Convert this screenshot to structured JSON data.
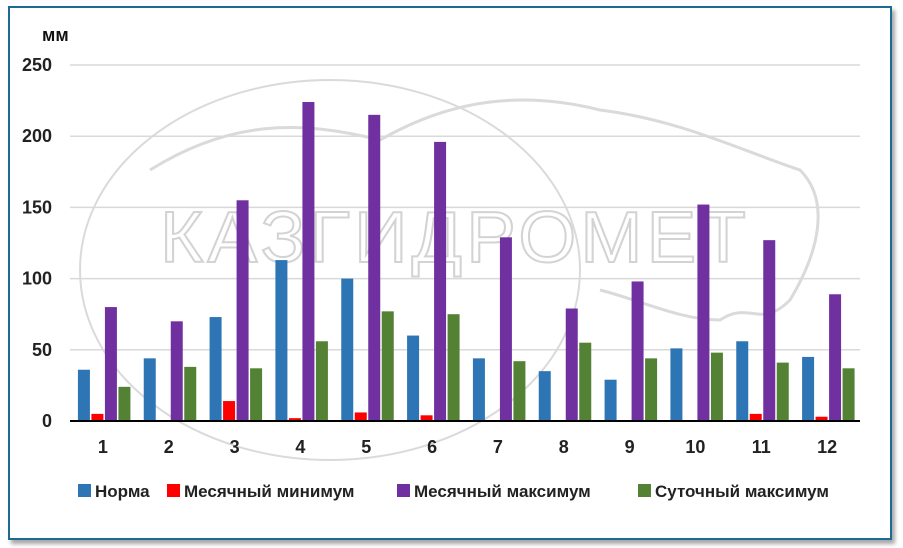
{
  "chart_data": {
    "type": "bar",
    "unit_label": "мм",
    "watermark": "КАЗГИДРОМЕТ",
    "categories": [
      "1",
      "2",
      "3",
      "4",
      "5",
      "6",
      "7",
      "8",
      "9",
      "10",
      "11",
      "12"
    ],
    "ylim": [
      0,
      250
    ],
    "yticks": [
      0,
      50,
      100,
      150,
      200,
      250
    ],
    "grid": true,
    "legend_position": "bottom",
    "series": [
      {
        "name": "Норма",
        "color": "#2e75b6",
        "values": [
          36,
          44,
          73,
          113,
          100,
          60,
          44,
          35,
          29,
          51,
          56,
          45
        ]
      },
      {
        "name": "Месячный минимум",
        "color": "#ff0000",
        "values": [
          5,
          0,
          14,
          2,
          6,
          4,
          0,
          0,
          0,
          0,
          5,
          3
        ]
      },
      {
        "name": "Месячный максимум",
        "color": "#7030a0",
        "values": [
          80,
          70,
          155,
          224,
          215,
          196,
          129,
          79,
          98,
          152,
          127,
          89
        ]
      },
      {
        "name": "Суточный максимум",
        "color": "#548235",
        "values": [
          24,
          38,
          37,
          56,
          77,
          75,
          42,
          55,
          44,
          48,
          41,
          37
        ]
      }
    ]
  }
}
